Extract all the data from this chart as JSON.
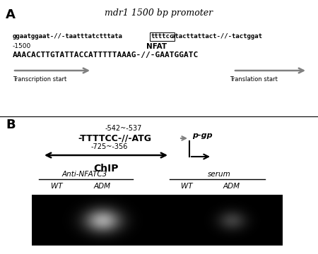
{
  "panel_A_label": "A",
  "panel_B_label": "B",
  "title_italic": "mdr1 1500 bp promoter",
  "seq_line1_left": "ggaatggaat-//-taatttatctttata",
  "seq_line1_nfat": "ttttcc",
  "seq_line1_right": "atacttattact-//-tactggat",
  "seq_label_1500": "-1500",
  "seq_label_NFAT": "NFAT",
  "seq_line2": "AAACACTTGTATTACCATTTTTAAAG-//-GAATGGATC",
  "transcription_start": "Transcription start",
  "translation_start": "Translation start",
  "chip_label_top": "-542~-537",
  "chip_seq": "-TTTTCC-//-ATG",
  "chip_range": "-725~-356",
  "chip_word": "ChIP",
  "pgp_label": "p-gp",
  "anti_label": "Anti-NFATC3",
  "serum_label": "serum",
  "wt1": "WT",
  "adm1": "ADM",
  "wt2": "WT",
  "adm2": "ADM",
  "bg_color": "#ffffff",
  "gel_bg": "#000000"
}
